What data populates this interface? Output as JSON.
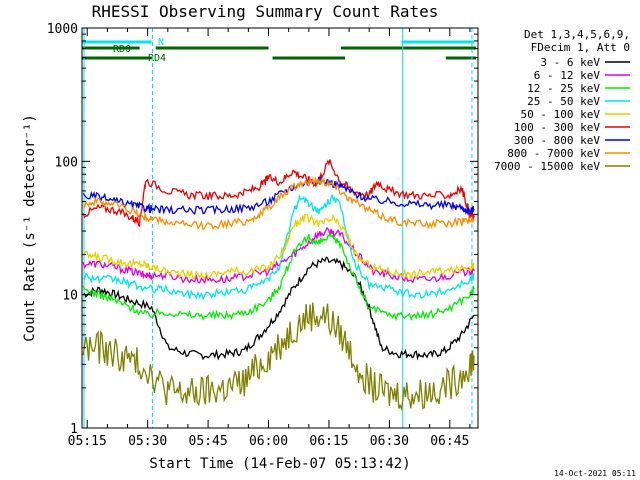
{
  "chart_data": {
    "type": "line",
    "title": "RHESSI Observing Summary Count Rates",
    "xlabel": "Start Time (14-Feb-07 05:13:42)",
    "ylabel": "Count Rate (s⁻¹ detector⁻¹)",
    "ylog": true,
    "ylim": [
      1,
      1000
    ],
    "xlim_min": [
      313.7,
      412
    ],
    "x_unit": "minutes after 00:00 UT on 14-Feb-07",
    "yticks": [
      1,
      10,
      100,
      1000
    ],
    "ytick_labels": [
      "1",
      "10",
      "100",
      "1000"
    ],
    "xticks": [
      315,
      330,
      345,
      360,
      375,
      390,
      405
    ],
    "xtick_labels": [
      "05:15",
      "05:30",
      "05:45",
      "06:00",
      "06:15",
      "06:30",
      "06:45"
    ],
    "footer": "14-Oct-2021 05:11",
    "legend": {
      "placement": "right",
      "header": [
        "Det 1,3,4,5,6,9,",
        "FDecim 1, Att 0"
      ]
    },
    "flags": [
      {
        "name": "N",
        "color": "#00e5ee",
        "row": "top",
        "intervals": [
          [
            313.7,
            331
          ],
          [
            393,
            411
          ]
        ]
      },
      {
        "name": "RD0",
        "color": "#006400",
        "row": "upper",
        "intervals": [
          [
            313.7,
            328
          ],
          [
            332,
            360
          ],
          [
            378,
            412
          ]
        ]
      },
      {
        "name": "RD4",
        "color": "#006400",
        "row": "lower",
        "intervals": [
          [
            313.7,
            331
          ],
          [
            361,
            379
          ],
          [
            404,
            412
          ]
        ]
      }
    ],
    "sun_lines": [
      {
        "x": 314.2,
        "style": "solid"
      },
      {
        "x": 331.2,
        "style": "dashed"
      },
      {
        "x": 393.3,
        "style": "solid"
      },
      {
        "x": 410.5,
        "style": "dashed"
      }
    ],
    "series": [
      {
        "name": "3 - 6 keV",
        "color": "#000000",
        "points": [
          [
            314,
            10
          ],
          [
            318,
            11
          ],
          [
            322,
            10
          ],
          [
            326,
            9
          ],
          [
            331,
            8
          ],
          [
            335,
            4
          ],
          [
            340,
            3.6
          ],
          [
            345,
            3.5
          ],
          [
            350,
            3.6
          ],
          [
            354,
            3.8
          ],
          [
            358,
            5
          ],
          [
            362,
            7
          ],
          [
            366,
            11
          ],
          [
            370,
            16
          ],
          [
            374,
            18
          ],
          [
            378,
            17
          ],
          [
            382,
            13
          ],
          [
            385,
            8
          ],
          [
            388,
            4
          ],
          [
            392,
            3.6
          ],
          [
            396,
            3.6
          ],
          [
            400,
            3.5
          ],
          [
            404,
            3.8
          ],
          [
            408,
            5
          ],
          [
            411,
            7
          ]
        ]
      },
      {
        "name": "6 - 12 keV",
        "color": "#e000e0",
        "points": [
          [
            314,
            17
          ],
          [
            318,
            17
          ],
          [
            322,
            16
          ],
          [
            326,
            15
          ],
          [
            329,
            14
          ],
          [
            331,
            14
          ],
          [
            335,
            14
          ],
          [
            340,
            13
          ],
          [
            345,
            13
          ],
          [
            350,
            13
          ],
          [
            355,
            14
          ],
          [
            360,
            15
          ],
          [
            364,
            18
          ],
          [
            368,
            22
          ],
          [
            372,
            28
          ],
          [
            375,
            30
          ],
          [
            378,
            28
          ],
          [
            382,
            20
          ],
          [
            386,
            15
          ],
          [
            390,
            14
          ],
          [
            395,
            13
          ],
          [
            400,
            13
          ],
          [
            405,
            14
          ],
          [
            410,
            15
          ],
          [
            411,
            15
          ]
        ]
      },
      {
        "name": "12 - 25 keV",
        "color": "#00ee00",
        "points": [
          [
            314,
            11
          ],
          [
            318,
            10
          ],
          [
            322,
            9
          ],
          [
            326,
            8
          ],
          [
            330,
            7
          ],
          [
            334,
            7.5
          ],
          [
            340,
            7
          ],
          [
            345,
            7
          ],
          [
            350,
            7
          ],
          [
            355,
            7.5
          ],
          [
            360,
            9
          ],
          [
            363,
            12
          ],
          [
            366,
            20
          ],
          [
            370,
            27
          ],
          [
            372,
            24
          ],
          [
            375,
            27
          ],
          [
            378,
            24
          ],
          [
            381,
            14
          ],
          [
            385,
            8
          ],
          [
            390,
            7
          ],
          [
            395,
            7
          ],
          [
            400,
            7
          ],
          [
            405,
            8
          ],
          [
            410,
            10
          ],
          [
            411,
            11
          ]
        ]
      },
      {
        "name": "25 - 50 keV",
        "color": "#00e5ee",
        "points": [
          [
            314,
            14
          ],
          [
            318,
            13
          ],
          [
            322,
            13
          ],
          [
            326,
            12
          ],
          [
            330,
            11
          ],
          [
            334,
            11
          ],
          [
            340,
            10
          ],
          [
            345,
            10
          ],
          [
            350,
            10.5
          ],
          [
            355,
            11
          ],
          [
            360,
            13
          ],
          [
            363,
            17
          ],
          [
            366,
            40
          ],
          [
            368,
            55
          ],
          [
            371,
            45
          ],
          [
            373,
            42
          ],
          [
            376,
            55
          ],
          [
            378,
            45
          ],
          [
            381,
            18
          ],
          [
            385,
            12
          ],
          [
            390,
            11
          ],
          [
            395,
            10
          ],
          [
            400,
            10
          ],
          [
            405,
            11
          ],
          [
            410,
            13
          ],
          [
            411,
            14
          ]
        ]
      },
      {
        "name": "50 - 100 keV",
        "color": "#e6d000",
        "points": [
          [
            314,
            20
          ],
          [
            318,
            19
          ],
          [
            322,
            18
          ],
          [
            326,
            17
          ],
          [
            329,
            17
          ],
          [
            331,
            16
          ],
          [
            335,
            15
          ],
          [
            340,
            14
          ],
          [
            345,
            14
          ],
          [
            350,
            15
          ],
          [
            355,
            15
          ],
          [
            360,
            16
          ],
          [
            364,
            22
          ],
          [
            366,
            33
          ],
          [
            369,
            38
          ],
          [
            373,
            34
          ],
          [
            376,
            37
          ],
          [
            379,
            30
          ],
          [
            382,
            19
          ],
          [
            386,
            16
          ],
          [
            390,
            15
          ],
          [
            395,
            14
          ],
          [
            400,
            15
          ],
          [
            405,
            15
          ],
          [
            410,
            16
          ],
          [
            411,
            17
          ]
        ]
      },
      {
        "name": "100 - 300 keV",
        "color": "#ee0000",
        "points": [
          [
            314,
            40
          ],
          [
            318,
            45
          ],
          [
            322,
            43
          ],
          [
            326,
            38
          ],
          [
            328,
            35
          ],
          [
            329.5,
            72
          ],
          [
            335,
            60
          ],
          [
            340,
            56
          ],
          [
            345,
            55
          ],
          [
            350,
            55
          ],
          [
            354,
            58
          ],
          [
            358,
            65
          ],
          [
            360,
            75
          ],
          [
            363,
            70
          ],
          [
            366,
            85
          ],
          [
            369,
            75
          ],
          [
            372,
            68
          ],
          [
            375,
            100
          ],
          [
            378,
            70
          ],
          [
            381,
            60
          ],
          [
            385,
            56
          ],
          [
            387,
            70
          ],
          [
            390,
            60
          ],
          [
            395,
            56
          ],
          [
            400,
            55
          ],
          [
            405,
            56
          ],
          [
            408,
            62
          ],
          [
            410,
            40
          ],
          [
            411,
            38
          ]
        ]
      },
      {
        "name": "300 - 800 keV",
        "color": "#0000ee",
        "points": [
          [
            314,
            55
          ],
          [
            318,
            54
          ],
          [
            322,
            50
          ],
          [
            326,
            47
          ],
          [
            329,
            45
          ],
          [
            331,
            44
          ],
          [
            335,
            43
          ],
          [
            340,
            43
          ],
          [
            345,
            43
          ],
          [
            350,
            44
          ],
          [
            355,
            45
          ],
          [
            360,
            50
          ],
          [
            364,
            60
          ],
          [
            368,
            68
          ],
          [
            372,
            72
          ],
          [
            375,
            70
          ],
          [
            378,
            65
          ],
          [
            381,
            58
          ],
          [
            385,
            52
          ],
          [
            390,
            50
          ],
          [
            395,
            48
          ],
          [
            400,
            47
          ],
          [
            405,
            47
          ],
          [
            408,
            45
          ],
          [
            410,
            42
          ],
          [
            411,
            44
          ]
        ]
      },
      {
        "name": "800 - 7000 keV",
        "color": "#ff8c00",
        "points": [
          [
            314,
            48
          ],
          [
            318,
            50
          ],
          [
            322,
            48
          ],
          [
            326,
            43
          ],
          [
            329,
            38
          ],
          [
            331,
            37
          ],
          [
            335,
            35
          ],
          [
            340,
            33
          ],
          [
            345,
            33
          ],
          [
            350,
            34
          ],
          [
            355,
            36
          ],
          [
            358,
            40
          ],
          [
            361,
            48
          ],
          [
            364,
            58
          ],
          [
            368,
            68
          ],
          [
            372,
            72
          ],
          [
            375,
            70
          ],
          [
            378,
            60
          ],
          [
            381,
            50
          ],
          [
            385,
            43
          ],
          [
            389,
            38
          ],
          [
            393,
            35
          ],
          [
            398,
            34
          ],
          [
            403,
            34
          ],
          [
            408,
            35
          ],
          [
            411,
            37
          ]
        ]
      },
      {
        "name": "7000 - 15000 keV",
        "color": "#808000",
        "points": [
          [
            314,
            4
          ],
          [
            318,
            4
          ],
          [
            322,
            3.6
          ],
          [
            326,
            3.2
          ],
          [
            330,
            2.8
          ],
          [
            334,
            2
          ],
          [
            338,
            1.8
          ],
          [
            342,
            1.8
          ],
          [
            346,
            1.9
          ],
          [
            350,
            2
          ],
          [
            354,
            2.2
          ],
          [
            358,
            3
          ],
          [
            362,
            4
          ],
          [
            366,
            5.5
          ],
          [
            370,
            7
          ],
          [
            374,
            7
          ],
          [
            378,
            5
          ],
          [
            382,
            3
          ],
          [
            386,
            2
          ],
          [
            390,
            1.8
          ],
          [
            394,
            1.8
          ],
          [
            398,
            1.8
          ],
          [
            402,
            2
          ],
          [
            406,
            2.2
          ],
          [
            410,
            3
          ],
          [
            411,
            3.5
          ]
        ]
      }
    ]
  }
}
